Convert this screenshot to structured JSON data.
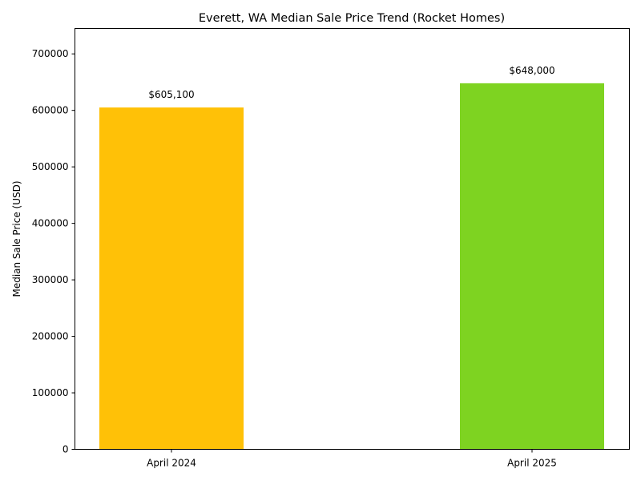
{
  "chart_data": {
    "type": "bar",
    "title": "Everett, WA Median Sale Price Trend (Rocket Homes)",
    "xlabel": "",
    "ylabel": "Median Sale Price (USD)",
    "categories": [
      "April 2024",
      "April 2025"
    ],
    "values": [
      605100,
      648000
    ],
    "data_labels": [
      "$605,100",
      "$648,000"
    ],
    "colors": [
      "#FFC107",
      "#7ED321"
    ],
    "ylim": [
      0,
      745000
    ],
    "yticks": [
      0,
      100000,
      200000,
      300000,
      400000,
      500000,
      600000,
      700000
    ],
    "ytick_labels": [
      "0",
      "100000",
      "200000",
      "300000",
      "400000",
      "500000",
      "600000",
      "700000"
    ],
    "grid": false,
    "legend": "none"
  }
}
